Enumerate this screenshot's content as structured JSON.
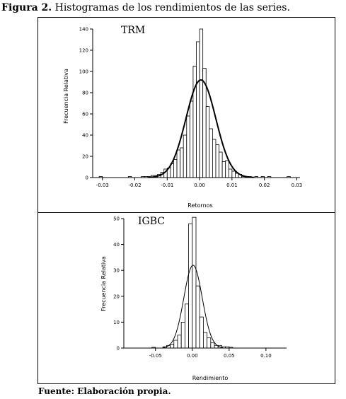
{
  "figure": {
    "caption_bold": "Figura 2.",
    "caption_text": " Histogramas de los rendimientos de las series.",
    "source": "Fuente: Elaboración propia."
  },
  "chart_data": [
    {
      "type": "bar",
      "series_label": "TRM",
      "xlabel": "Retornos",
      "ylabel": "Frecuencia Relativa",
      "xlim": [
        -0.033,
        0.031
      ],
      "ylim": [
        0,
        140
      ],
      "xticks": [
        "-0.03",
        "-0.02",
        "-0.01",
        "0.00",
        "0.01",
        "0.02",
        "0.03"
      ],
      "yticks": [
        "0",
        "20",
        "40",
        "60",
        "80",
        "100",
        "120",
        "140"
      ],
      "grid": false,
      "bin_width": 0.001,
      "bins": [
        {
          "x": -0.0305,
          "y": 1
        },
        {
          "x": -0.0215,
          "y": 1
        },
        {
          "x": -0.0175,
          "y": 1
        },
        {
          "x": -0.0165,
          "y": 1
        },
        {
          "x": -0.0155,
          "y": 1
        },
        {
          "x": -0.0145,
          "y": 2
        },
        {
          "x": -0.0135,
          "y": 2
        },
        {
          "x": -0.0125,
          "y": 3
        },
        {
          "x": -0.0115,
          "y": 5
        },
        {
          "x": -0.0105,
          "y": 8
        },
        {
          "x": -0.0095,
          "y": 9
        },
        {
          "x": -0.0085,
          "y": 13
        },
        {
          "x": -0.0075,
          "y": 17
        },
        {
          "x": -0.0065,
          "y": 26
        },
        {
          "x": -0.0055,
          "y": 28
        },
        {
          "x": -0.0045,
          "y": 40
        },
        {
          "x": -0.0035,
          "y": 58
        },
        {
          "x": -0.0025,
          "y": 72
        },
        {
          "x": -0.0015,
          "y": 105
        },
        {
          "x": -0.0005,
          "y": 128
        },
        {
          "x": 0.0005,
          "y": 140
        },
        {
          "x": 0.0015,
          "y": 103
        },
        {
          "x": 0.0025,
          "y": 67
        },
        {
          "x": 0.0035,
          "y": 46
        },
        {
          "x": 0.0045,
          "y": 36
        },
        {
          "x": 0.0055,
          "y": 31
        },
        {
          "x": 0.0065,
          "y": 24
        },
        {
          "x": 0.0075,
          "y": 15
        },
        {
          "x": 0.0085,
          "y": 16
        },
        {
          "x": 0.0095,
          "y": 8
        },
        {
          "x": 0.0105,
          "y": 6
        },
        {
          "x": 0.0115,
          "y": 4
        },
        {
          "x": 0.0125,
          "y": 3
        },
        {
          "x": 0.0135,
          "y": 1
        },
        {
          "x": 0.0155,
          "y": 1
        },
        {
          "x": 0.0175,
          "y": 1
        },
        {
          "x": 0.0195,
          "y": 1
        },
        {
          "x": 0.0215,
          "y": 1
        },
        {
          "x": 0.0275,
          "y": 1
        }
      ],
      "fit_curve": {
        "type": "normal",
        "mean": 0.0004,
        "peak": 92,
        "sd": 0.0046
      }
    },
    {
      "type": "bar",
      "series_label": "IGBC",
      "xlabel": "Rendimiento",
      "ylabel": "Frecuencia Relativa",
      "xlim": [
        -0.093,
        0.128
      ],
      "ylim": [
        0,
        50
      ],
      "xticks": [
        "-0.05",
        "0.00",
        "0.05",
        "0.10"
      ],
      "yticks": [
        "0",
        "10",
        "20",
        "30",
        "40",
        "50"
      ],
      "grid": false,
      "bin_width": 0.005,
      "bins": [
        {
          "x": -0.0525,
          "y": 0.3
        },
        {
          "x": -0.0375,
          "y": 0.5
        },
        {
          "x": -0.0325,
          "y": 1
        },
        {
          "x": -0.0275,
          "y": 1.5
        },
        {
          "x": -0.0225,
          "y": 3
        },
        {
          "x": -0.0175,
          "y": 5
        },
        {
          "x": -0.0125,
          "y": 10
        },
        {
          "x": -0.0075,
          "y": 17
        },
        {
          "x": -0.0025,
          "y": 48
        },
        {
          "x": 0.0025,
          "y": 50.5
        },
        {
          "x": 0.0075,
          "y": 24
        },
        {
          "x": 0.0125,
          "y": 12
        },
        {
          "x": 0.0175,
          "y": 6
        },
        {
          "x": 0.0225,
          "y": 4
        },
        {
          "x": 0.0275,
          "y": 2
        },
        {
          "x": 0.0325,
          "y": 1
        },
        {
          "x": 0.0375,
          "y": 1
        },
        {
          "x": 0.0425,
          "y": 0.5
        },
        {
          "x": 0.0475,
          "y": 0.5
        },
        {
          "x": 0.0525,
          "y": 0.3
        }
      ],
      "fit_curve": {
        "type": "normal",
        "mean": 0.001,
        "peak": 32,
        "sd": 0.0125
      }
    }
  ]
}
